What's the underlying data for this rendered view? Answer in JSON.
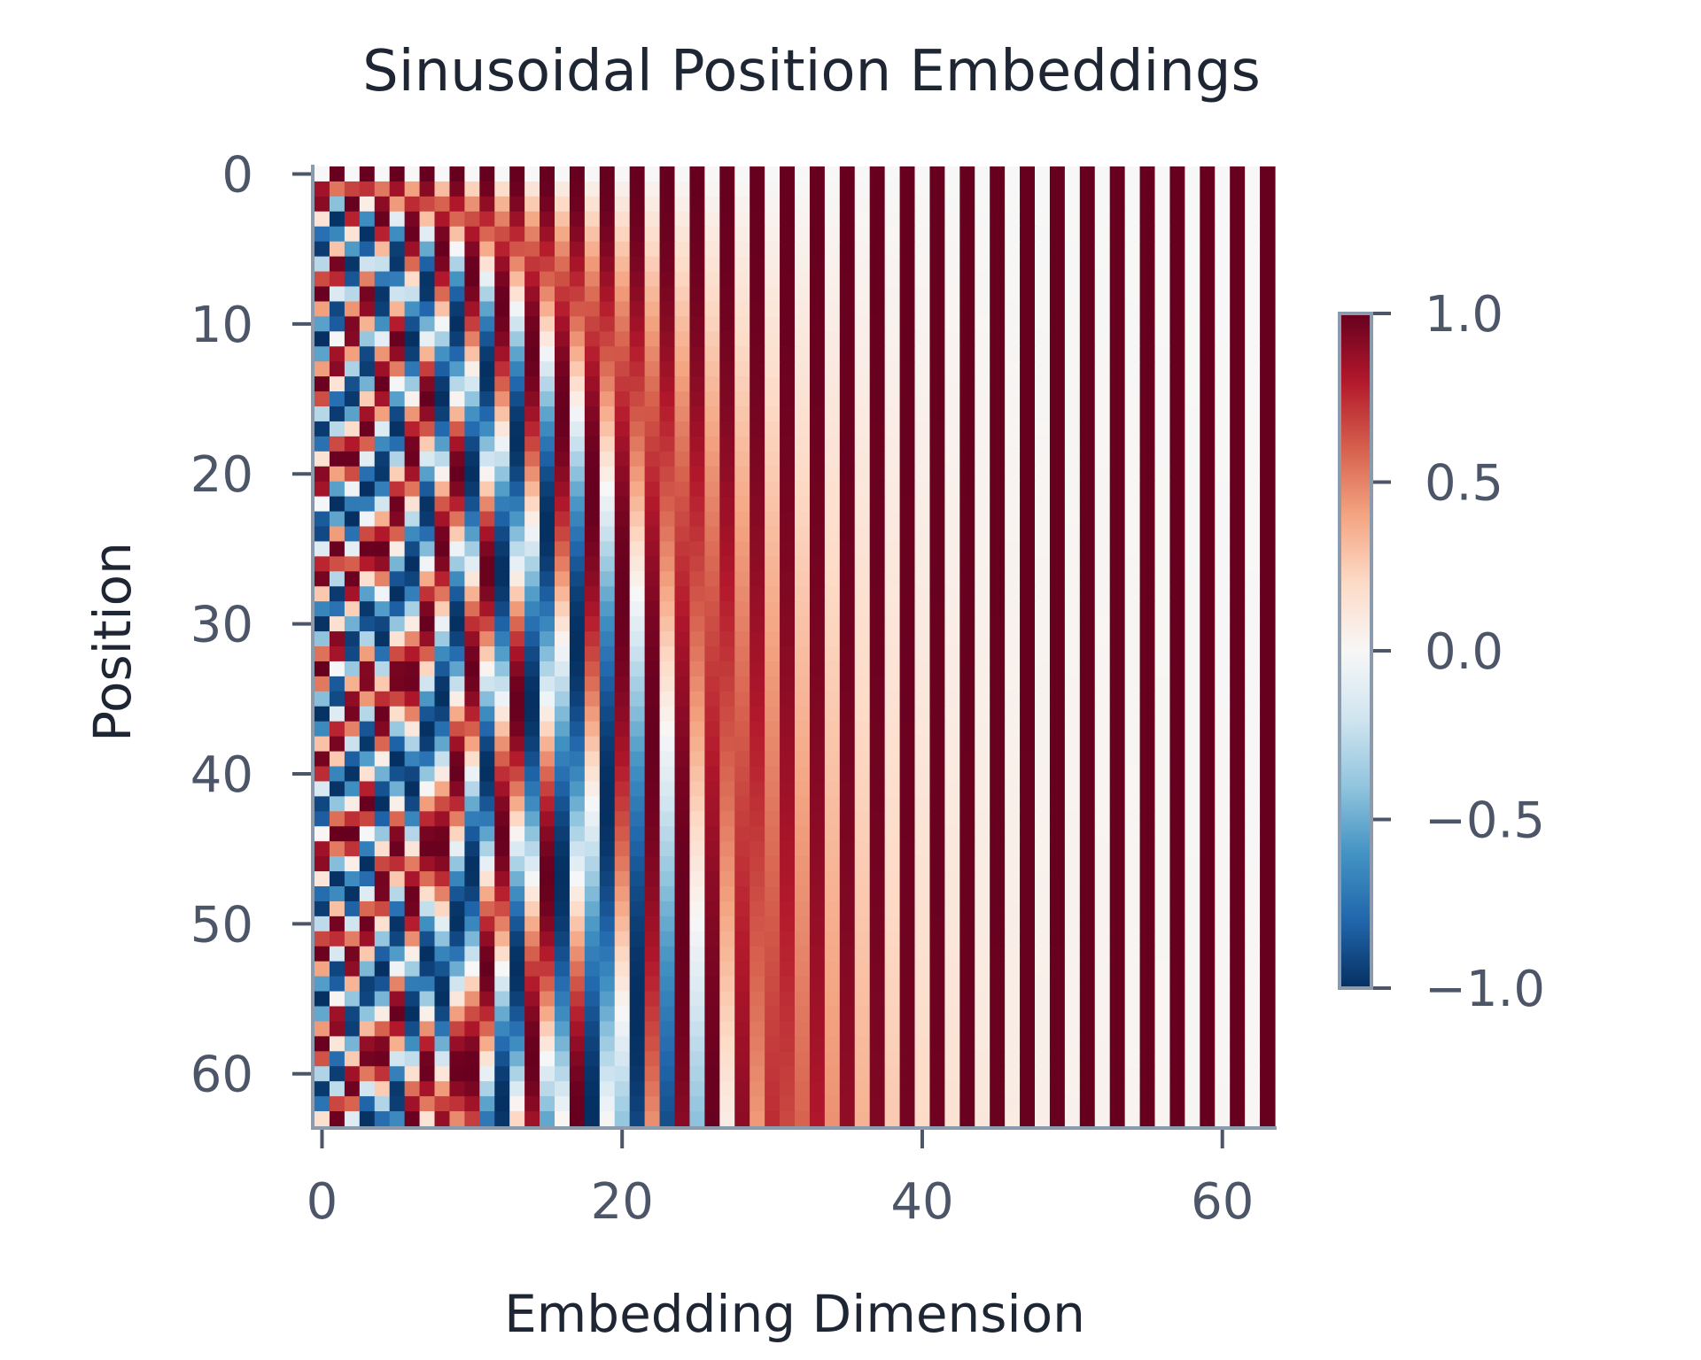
{
  "chart_data": {
    "type": "heatmap",
    "title": "Sinusoidal Position Embeddings",
    "xlabel": "Embedding Dimension",
    "ylabel": "Position",
    "n_positions": 64,
    "n_dims": 64,
    "value_formula": "PE[pos][2i] = sin(pos / 10000^(2i/d)), PE[pos][2i+1] = cos(pos / 10000^(2i/d)), d = 64",
    "xlim": [
      -0.5,
      63.5
    ],
    "ylim": [
      63.5,
      -0.5
    ],
    "x_ticks": [
      0,
      20,
      40,
      60
    ],
    "x_tick_labels": [
      "0",
      "20",
      "40",
      "60"
    ],
    "y_ticks": [
      0,
      10,
      20,
      30,
      40,
      50,
      60
    ],
    "y_tick_labels": [
      "0",
      "10",
      "20",
      "30",
      "40",
      "50",
      "60"
    ],
    "colorbar": {
      "colormap": "RdBu_r",
      "vmin": -1.0,
      "vmax": 1.0,
      "ticks": [
        1.0,
        0.5,
        0.0,
        -0.5,
        -1.0
      ],
      "tick_labels": [
        "1.0",
        "0.5",
        "0.0",
        "−0.5",
        "−1.0"
      ],
      "colors": [
        "#053061",
        "#2166ac",
        "#4393c3",
        "#92c5de",
        "#d1e5f0",
        "#f7f7f7",
        "#fddbc7",
        "#f4a582",
        "#d6604d",
        "#b2182b",
        "#67001f"
      ]
    },
    "grid": false
  }
}
